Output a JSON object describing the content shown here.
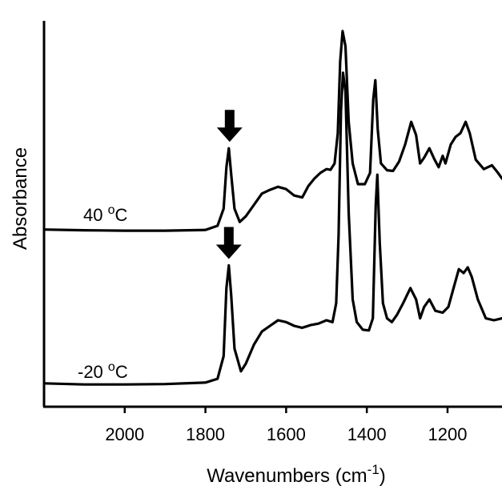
{
  "chart_data": {
    "type": "line",
    "title": "",
    "xlabel": "Wavenumbers (cm",
    "xlabel_superscript": "-1",
    "xlabel_close": ")",
    "ylabel": "Absorbance",
    "x_reversed": true,
    "xlim": [
      2200,
      1065
    ],
    "x_ticks": [
      2000,
      1800,
      1600,
      1400,
      1200
    ],
    "y_ticks_shown": false,
    "ylim": [
      0,
      100
    ],
    "grid": false,
    "legend": "none",
    "line_color": "#000000",
    "series": [
      {
        "label_prefix": "40 ",
        "label_sup": "o",
        "label_suffix": "C",
        "arrow_at_x": 1740,
        "points": [
          [
            2200,
            43.5
          ],
          [
            2100,
            43.3
          ],
          [
            2000,
            43.2
          ],
          [
            1900,
            43.2
          ],
          [
            1800,
            43.4
          ],
          [
            1770,
            44.5
          ],
          [
            1755,
            49
          ],
          [
            1748,
            60
          ],
          [
            1742,
            65
          ],
          [
            1736,
            58
          ],
          [
            1728,
            49
          ],
          [
            1715,
            45.5
          ],
          [
            1700,
            47
          ],
          [
            1680,
            50
          ],
          [
            1660,
            53
          ],
          [
            1640,
            54
          ],
          [
            1620,
            54.8
          ],
          [
            1600,
            54.2
          ],
          [
            1580,
            52.5
          ],
          [
            1560,
            52
          ],
          [
            1545,
            55
          ],
          [
            1530,
            57
          ],
          [
            1515,
            58.5
          ],
          [
            1500,
            59.5
          ],
          [
            1490,
            59.3
          ],
          [
            1480,
            61
          ],
          [
            1472,
            69
          ],
          [
            1466,
            88
          ],
          [
            1460,
            96
          ],
          [
            1453,
            92
          ],
          [
            1445,
            72
          ],
          [
            1435,
            61
          ],
          [
            1422,
            55.5
          ],
          [
            1405,
            55.5
          ],
          [
            1392,
            58.5
          ],
          [
            1384,
            78
          ],
          [
            1379,
            83
          ],
          [
            1373,
            70
          ],
          [
            1365,
            61
          ],
          [
            1350,
            59.2
          ],
          [
            1335,
            59
          ],
          [
            1320,
            61.5
          ],
          [
            1305,
            66
          ],
          [
            1290,
            72
          ],
          [
            1278,
            68.5
          ],
          [
            1268,
            61
          ],
          [
            1258,
            62.5
          ],
          [
            1245,
            65
          ],
          [
            1232,
            62
          ],
          [
            1222,
            60
          ],
          [
            1212,
            63
          ],
          [
            1205,
            61
          ],
          [
            1192,
            66
          ],
          [
            1180,
            68
          ],
          [
            1168,
            69
          ],
          [
            1155,
            72
          ],
          [
            1145,
            69
          ],
          [
            1130,
            62
          ],
          [
            1110,
            59.5
          ],
          [
            1090,
            60.5
          ],
          [
            1075,
            58.5
          ],
          [
            1065,
            57
          ]
        ]
      },
      {
        "label_prefix": "-20 ",
        "label_sup": "o",
        "label_suffix": "C",
        "arrow_at_x": 1742,
        "points": [
          [
            2200,
            2.8
          ],
          [
            2100,
            2.5
          ],
          [
            2000,
            2.5
          ],
          [
            1900,
            2.6
          ],
          [
            1800,
            3
          ],
          [
            1770,
            4
          ],
          [
            1755,
            10
          ],
          [
            1748,
            28
          ],
          [
            1742,
            34
          ],
          [
            1736,
            26
          ],
          [
            1728,
            12
          ],
          [
            1712,
            6
          ],
          [
            1700,
            8
          ],
          [
            1680,
            13
          ],
          [
            1660,
            16.5
          ],
          [
            1640,
            18
          ],
          [
            1620,
            19.5
          ],
          [
            1600,
            19
          ],
          [
            1580,
            18
          ],
          [
            1560,
            17.5
          ],
          [
            1540,
            18.2
          ],
          [
            1520,
            18.6
          ],
          [
            1500,
            19.5
          ],
          [
            1485,
            19
          ],
          [
            1476,
            24
          ],
          [
            1470,
            42
          ],
          [
            1464,
            75
          ],
          [
            1459,
            85
          ],
          [
            1453,
            80
          ],
          [
            1445,
            48
          ],
          [
            1435,
            25
          ],
          [
            1425,
            19
          ],
          [
            1410,
            17
          ],
          [
            1395,
            16.8
          ],
          [
            1385,
            20
          ],
          [
            1378,
            50
          ],
          [
            1374,
            58
          ],
          [
            1368,
            40
          ],
          [
            1360,
            24
          ],
          [
            1350,
            20
          ],
          [
            1338,
            19
          ],
          [
            1325,
            21
          ],
          [
            1310,
            24
          ],
          [
            1292,
            28
          ],
          [
            1278,
            25
          ],
          [
            1268,
            20
          ],
          [
            1258,
            23
          ],
          [
            1245,
            25
          ],
          [
            1230,
            22
          ],
          [
            1212,
            21.5
          ],
          [
            1198,
            23
          ],
          [
            1185,
            28
          ],
          [
            1172,
            33
          ],
          [
            1160,
            32
          ],
          [
            1150,
            33.5
          ],
          [
            1140,
            31
          ],
          [
            1125,
            25
          ],
          [
            1105,
            20
          ],
          [
            1085,
            19.5
          ],
          [
            1065,
            20
          ]
        ]
      }
    ]
  }
}
